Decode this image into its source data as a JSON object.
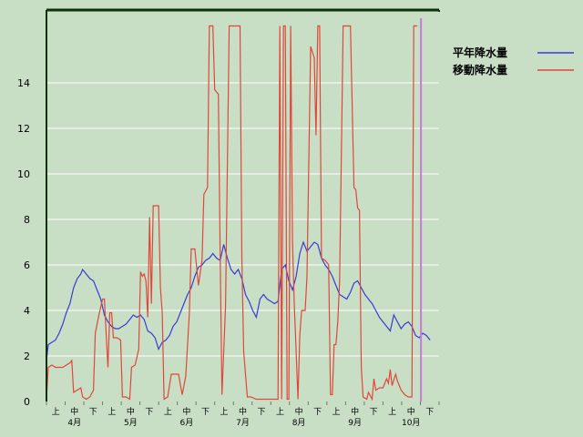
{
  "chart_data": {
    "type": "line",
    "ylim": [
      0,
      16
    ],
    "yticks": [
      "0",
      "2",
      "4",
      "6",
      "8",
      "10",
      "12",
      "14"
    ],
    "xlim": [
      0,
      217
    ],
    "grid": true,
    "legend_position": "top-right",
    "decade_labels": [
      "上",
      "中",
      "下",
      "上",
      "中",
      "下",
      "上",
      "中",
      "下",
      "上",
      "中",
      "下",
      "上",
      "中",
      "下",
      "上",
      "中",
      "下",
      "上",
      "中",
      "下"
    ],
    "month_labels": [
      "4月",
      "5月",
      "6月",
      "7月",
      "8月",
      "9月",
      "10月"
    ],
    "colors": {
      "normal": "#3a3ad6",
      "moving": "#e0473a",
      "marker": "#c878d8",
      "frame": "#0b300b",
      "background": "#c8dfc6"
    },
    "series": [
      {
        "name": "平年降水量",
        "key": "normal",
        "points": [
          [
            0,
            1.8
          ],
          [
            1,
            2.5
          ],
          [
            3,
            2.6
          ],
          [
            5,
            2.7
          ],
          [
            7,
            3.0
          ],
          [
            9,
            3.4
          ],
          [
            11,
            3.9
          ],
          [
            13,
            4.3
          ],
          [
            15,
            5.0
          ],
          [
            17,
            5.4
          ],
          [
            19,
            5.6
          ],
          [
            20,
            5.8
          ],
          [
            22,
            5.6
          ],
          [
            24,
            5.4
          ],
          [
            26,
            5.3
          ],
          [
            28,
            4.9
          ],
          [
            30,
            4.5
          ],
          [
            32,
            3.8
          ],
          [
            34,
            3.5
          ],
          [
            36,
            3.3
          ],
          [
            38,
            3.2
          ],
          [
            40,
            3.2
          ],
          [
            42,
            3.3
          ],
          [
            44,
            3.4
          ],
          [
            46,
            3.6
          ],
          [
            48,
            3.8
          ],
          [
            50,
            3.7
          ],
          [
            52,
            3.8
          ],
          [
            54,
            3.6
          ],
          [
            56,
            3.1
          ],
          [
            58,
            3.0
          ],
          [
            60,
            2.8
          ],
          [
            62,
            2.3
          ],
          [
            64,
            2.6
          ],
          [
            66,
            2.7
          ],
          [
            68,
            2.9
          ],
          [
            70,
            3.3
          ],
          [
            72,
            3.5
          ],
          [
            74,
            3.9
          ],
          [
            76,
            4.3
          ],
          [
            78,
            4.7
          ],
          [
            80,
            5.0
          ],
          [
            82,
            5.5
          ],
          [
            84,
            5.9
          ],
          [
            86,
            6.0
          ],
          [
            88,
            6.2
          ],
          [
            90,
            6.3
          ],
          [
            92,
            6.5
          ],
          [
            94,
            6.3
          ],
          [
            96,
            6.2
          ],
          [
            98,
            6.9
          ],
          [
            100,
            6.3
          ],
          [
            102,
            5.8
          ],
          [
            104,
            5.6
          ],
          [
            106,
            5.8
          ],
          [
            108,
            5.4
          ],
          [
            110,
            4.7
          ],
          [
            112,
            4.4
          ],
          [
            114,
            4.0
          ],
          [
            116,
            3.7
          ],
          [
            118,
            4.5
          ],
          [
            120,
            4.7
          ],
          [
            122,
            4.5
          ],
          [
            124,
            4.4
          ],
          [
            126,
            4.3
          ],
          [
            128,
            4.4
          ],
          [
            130,
            5.8
          ],
          [
            132,
            6.0
          ],
          [
            134,
            5.3
          ],
          [
            136,
            4.9
          ],
          [
            138,
            5.5
          ],
          [
            140,
            6.5
          ],
          [
            142,
            7.0
          ],
          [
            144,
            6.6
          ],
          [
            146,
            6.8
          ],
          [
            148,
            7.0
          ],
          [
            150,
            6.9
          ],
          [
            152,
            6.3
          ],
          [
            154,
            6.0
          ],
          [
            156,
            5.8
          ],
          [
            158,
            5.5
          ],
          [
            160,
            5.1
          ],
          [
            162,
            4.7
          ],
          [
            164,
            4.6
          ],
          [
            166,
            4.5
          ],
          [
            168,
            4.8
          ],
          [
            170,
            5.2
          ],
          [
            172,
            5.3
          ],
          [
            174,
            5.0
          ],
          [
            176,
            4.7
          ],
          [
            178,
            4.5
          ],
          [
            180,
            4.3
          ],
          [
            182,
            4.0
          ],
          [
            184,
            3.7
          ],
          [
            186,
            3.5
          ],
          [
            188,
            3.3
          ],
          [
            190,
            3.1
          ],
          [
            192,
            3.8
          ],
          [
            194,
            3.5
          ],
          [
            196,
            3.2
          ],
          [
            198,
            3.4
          ],
          [
            200,
            3.5
          ],
          [
            202,
            3.3
          ],
          [
            204,
            2.9
          ],
          [
            206,
            2.8
          ],
          [
            208,
            3.0
          ],
          [
            210,
            2.9
          ],
          [
            212,
            2.7
          ]
        ]
      },
      {
        "name": "移動降水量",
        "key": "moving",
        "points": [
          [
            0,
            0.1
          ],
          [
            1,
            1.5
          ],
          [
            3,
            1.6
          ],
          [
            5,
            1.5
          ],
          [
            7,
            1.5
          ],
          [
            9,
            1.5
          ],
          [
            11,
            1.6
          ],
          [
            13,
            1.7
          ],
          [
            14,
            1.8
          ],
          [
            15,
            0.4
          ],
          [
            17,
            0.5
          ],
          [
            19,
            0.6
          ],
          [
            20,
            0.2
          ],
          [
            22,
            0.1
          ],
          [
            24,
            0.2
          ],
          [
            26,
            0.5
          ],
          [
            27,
            3.0
          ],
          [
            29,
            3.8
          ],
          [
            31,
            4.5
          ],
          [
            32,
            4.5
          ],
          [
            33,
            3.0
          ],
          [
            34,
            1.5
          ],
          [
            35,
            3.9
          ],
          [
            36,
            3.9
          ],
          [
            37,
            2.8
          ],
          [
            39,
            2.8
          ],
          [
            41,
            2.7
          ],
          [
            42,
            0.2
          ],
          [
            44,
            0.2
          ],
          [
            46,
            0.1
          ],
          [
            47,
            1.5
          ],
          [
            49,
            1.6
          ],
          [
            51,
            2.3
          ],
          [
            52,
            5.7
          ],
          [
            53,
            5.5
          ],
          [
            54,
            5.6
          ],
          [
            55,
            5.3
          ],
          [
            56,
            3.7
          ],
          [
            57,
            8.1
          ],
          [
            58,
            4.3
          ],
          [
            59,
            8.6
          ],
          [
            61,
            8.6
          ],
          [
            62,
            8.6
          ],
          [
            63,
            5.0
          ],
          [
            64,
            3.9
          ],
          [
            65,
            0.1
          ],
          [
            67,
            0.2
          ],
          [
            69,
            1.2
          ],
          [
            71,
            1.2
          ],
          [
            73,
            1.2
          ],
          [
            75,
            0.3
          ],
          [
            77,
            1.1
          ],
          [
            79,
            3.9
          ],
          [
            80,
            6.7
          ],
          [
            82,
            6.7
          ],
          [
            84,
            5.1
          ],
          [
            86,
            6.2
          ],
          [
            87,
            9.1
          ],
          [
            89,
            9.4
          ],
          [
            90,
            16.5
          ],
          [
            91,
            16.5
          ],
          [
            92,
            16.5
          ],
          [
            93,
            13.7
          ],
          [
            95,
            13.5
          ],
          [
            96,
            6.4
          ],
          [
            97,
            0.3
          ],
          [
            99,
            4.2
          ],
          [
            101,
            16.5
          ],
          [
            103,
            16.5
          ],
          [
            104,
            16.5
          ],
          [
            106,
            16.5
          ],
          [
            107,
            16.5
          ],
          [
            108,
            6.3
          ],
          [
            109,
            2.2
          ],
          [
            111,
            0.2
          ],
          [
            113,
            0.2
          ],
          [
            116,
            0.1
          ],
          [
            119,
            0.1
          ],
          [
            122,
            0.1
          ],
          [
            124,
            0.1
          ],
          [
            126,
            0.1
          ],
          [
            127,
            0.1
          ],
          [
            128,
            0.1
          ],
          [
            129,
            16.5
          ],
          [
            130,
            0.1
          ],
          [
            131,
            16.5
          ],
          [
            132,
            16.5
          ],
          [
            133,
            0.1
          ],
          [
            134,
            0.1
          ],
          [
            135,
            16.5
          ],
          [
            136,
            7.0
          ],
          [
            137,
            4.2
          ],
          [
            138,
            2.2
          ],
          [
            139,
            0.1
          ],
          [
            140,
            2.9
          ],
          [
            141,
            4.0
          ],
          [
            143,
            4.0
          ],
          [
            144,
            5.5
          ],
          [
            146,
            15.6
          ],
          [
            148,
            15.1
          ],
          [
            149,
            11.7
          ],
          [
            150,
            16.5
          ],
          [
            151,
            16.5
          ],
          [
            152,
            6.3
          ],
          [
            154,
            6.2
          ],
          [
            156,
            6.0
          ],
          [
            157,
            0.3
          ],
          [
            158,
            0.3
          ],
          [
            159,
            2.5
          ],
          [
            160,
            2.5
          ],
          [
            161,
            3.5
          ],
          [
            162,
            5.3
          ],
          [
            164,
            16.5
          ],
          [
            166,
            16.5
          ],
          [
            168,
            16.5
          ],
          [
            170,
            9.4
          ],
          [
            171,
            9.3
          ],
          [
            172,
            8.5
          ],
          [
            173,
            8.4
          ],
          [
            174,
            1.5
          ],
          [
            175,
            0.2
          ],
          [
            177,
            0.1
          ],
          [
            178,
            0.4
          ],
          [
            180,
            0.1
          ],
          [
            181,
            1.0
          ],
          [
            182,
            0.5
          ],
          [
            184,
            0.6
          ],
          [
            186,
            0.6
          ],
          [
            188,
            1.0
          ],
          [
            189,
            0.8
          ],
          [
            190,
            1.4
          ],
          [
            191,
            0.7
          ],
          [
            193,
            1.2
          ],
          [
            194,
            0.9
          ],
          [
            196,
            0.5
          ],
          [
            198,
            0.3
          ],
          [
            200,
            0.2
          ],
          [
            201,
            0.2
          ],
          [
            202,
            0.2
          ],
          [
            203,
            16.5
          ],
          [
            205,
            16.5
          ]
        ]
      }
    ],
    "marker_x": 207
  }
}
